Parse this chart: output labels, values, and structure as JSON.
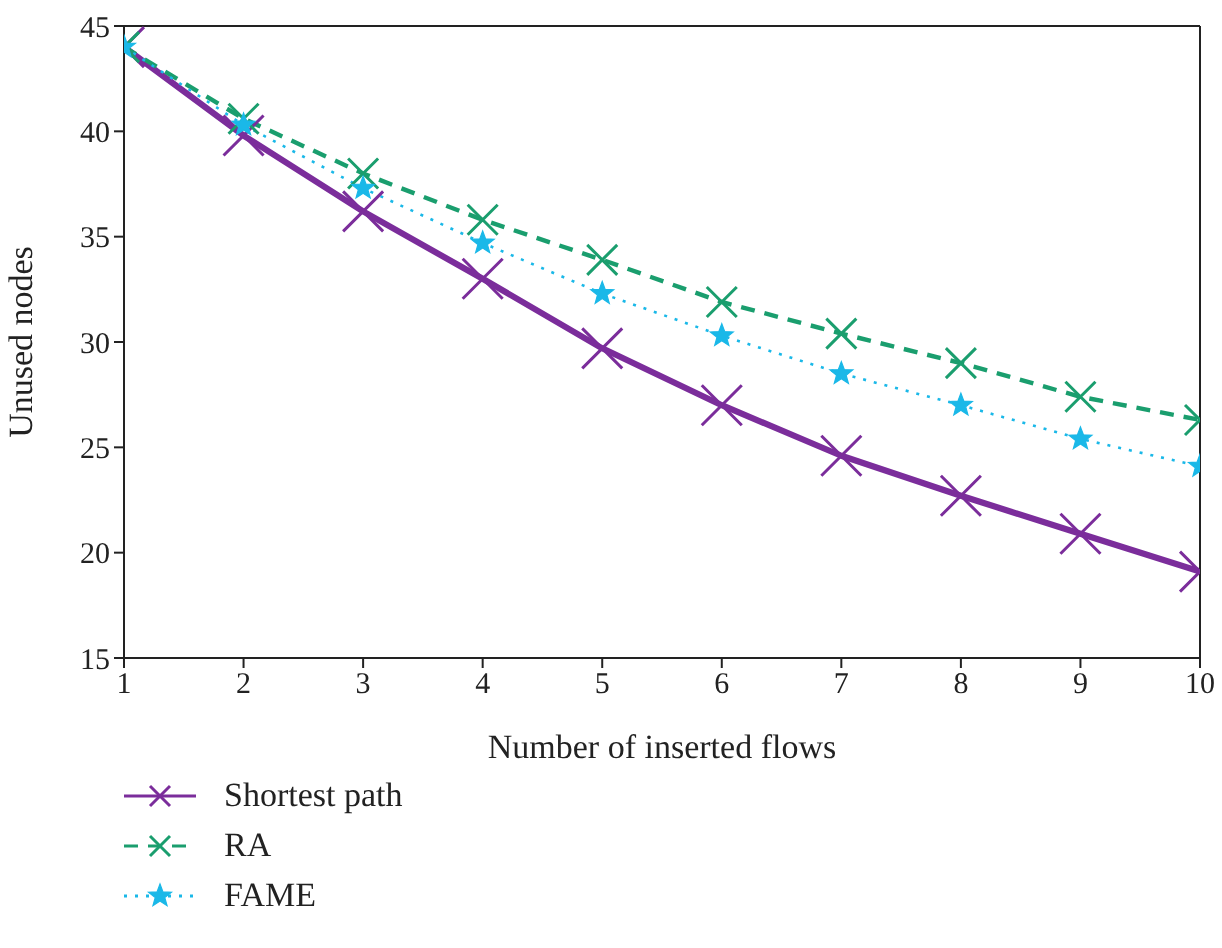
{
  "chart_data": {
    "type": "line",
    "xlabel": "Number of inserted flows",
    "ylabel": "Unused nodes",
    "x": [
      1,
      2,
      3,
      4,
      5,
      6,
      7,
      8,
      9,
      10
    ],
    "series": [
      {
        "name": "Shortest path",
        "color": "#7b2d9b",
        "line_style": "solid",
        "marker": "cross",
        "values": [
          44,
          39.8,
          36.2,
          33,
          29.7,
          27,
          24.6,
          22.7,
          20.9,
          19.1
        ]
      },
      {
        "name": "RA",
        "color": "#1a9e6e",
        "line_style": "dashed",
        "marker": "cross",
        "values": [
          44,
          40.6,
          38,
          35.8,
          33.9,
          31.9,
          30.4,
          29,
          27.4,
          26.3
        ]
      },
      {
        "name": "FAME",
        "color": "#1ab8e8",
        "line_style": "dotted",
        "marker": "star",
        "values": [
          44,
          40.3,
          37.3,
          34.7,
          32.3,
          30.3,
          28.5,
          27,
          25.4,
          24.1
        ]
      }
    ],
    "xlim": [
      1,
      10
    ],
    "xticks": [
      1,
      2,
      3,
      4,
      5,
      6,
      7,
      8,
      9,
      10
    ],
    "ylim": [
      15,
      45
    ],
    "yticks": [
      15,
      20,
      25,
      30,
      35,
      40,
      45
    ],
    "grid": false,
    "legend": "bottom left"
  }
}
